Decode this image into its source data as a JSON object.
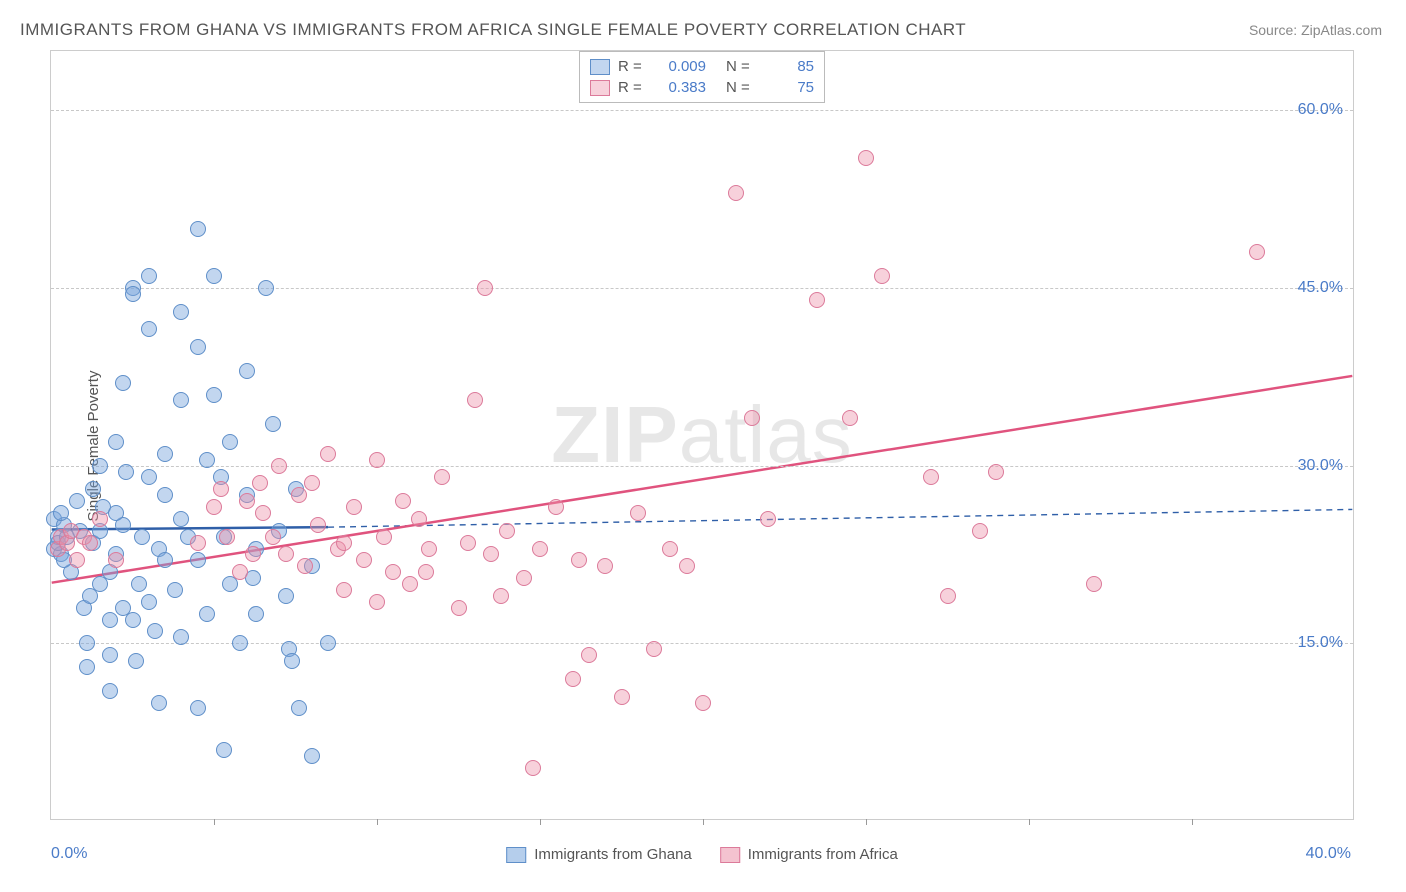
{
  "title": "IMMIGRANTS FROM GHANA VS IMMIGRANTS FROM AFRICA SINGLE FEMALE POVERTY CORRELATION CHART",
  "source": "Source: ZipAtlas.com",
  "watermark": "ZIPatlas",
  "ylabel": "Single Female Poverty",
  "chart": {
    "type": "scatter",
    "xlim": [
      0,
      40
    ],
    "ylim": [
      0,
      65
    ],
    "xtick_labels": [
      {
        "x": 0,
        "label": "0.0%"
      },
      {
        "x": 40,
        "label": "40.0%"
      }
    ],
    "xtick_minor": [
      5,
      10,
      15,
      20,
      25,
      30,
      35
    ],
    "ytick_labels": [
      {
        "y": 15,
        "label": "15.0%"
      },
      {
        "y": 30,
        "label": "30.0%"
      },
      {
        "y": 45,
        "label": "45.0%"
      },
      {
        "y": 60,
        "label": "60.0%"
      }
    ],
    "grid_color": "#c8c8c8",
    "background_color": "#ffffff",
    "marker_radius": 8,
    "series": [
      {
        "name": "Immigrants from Ghana",
        "fill": "rgba(120,165,220,0.45)",
        "stroke": "#5f8fc9",
        "r_value": "0.009",
        "n_value": "85",
        "trend": {
          "x1": 0,
          "y1": 24.5,
          "x2": 8.5,
          "y2": 24.7,
          "color": "#2f5fa8",
          "width": 2.5,
          "dash": "none"
        },
        "trend_ext": {
          "x1": 8.5,
          "y1": 24.7,
          "x2": 40,
          "y2": 26.2,
          "color": "#2f5fa8",
          "width": 1.4,
          "dash": "6,5"
        },
        "points": [
          [
            0.1,
            23.0
          ],
          [
            0.2,
            24.0
          ],
          [
            0.3,
            22.5
          ],
          [
            0.1,
            25.5
          ],
          [
            0.4,
            25.0
          ],
          [
            0.2,
            23.5
          ],
          [
            0.5,
            24.0
          ],
          [
            0.3,
            26.0
          ],
          [
            0.6,
            21.0
          ],
          [
            0.4,
            22.0
          ],
          [
            0.8,
            27.0
          ],
          [
            0.9,
            24.5
          ],
          [
            1.0,
            18.0
          ],
          [
            1.1,
            15.0
          ],
          [
            1.1,
            13.0
          ],
          [
            1.2,
            19.0
          ],
          [
            1.3,
            23.5
          ],
          [
            1.3,
            28.0
          ],
          [
            1.5,
            24.5
          ],
          [
            1.5,
            20.0
          ],
          [
            1.5,
            30.0
          ],
          [
            1.6,
            26.5
          ],
          [
            1.8,
            17.0
          ],
          [
            1.8,
            14.0
          ],
          [
            1.8,
            11.0
          ],
          [
            2.0,
            32.0
          ],
          [
            2.0,
            22.5
          ],
          [
            2.2,
            25.0
          ],
          [
            2.2,
            37.0
          ],
          [
            2.3,
            29.5
          ],
          [
            2.5,
            45.0
          ],
          [
            2.5,
            44.5
          ],
          [
            2.5,
            17.0
          ],
          [
            2.6,
            13.5
          ],
          [
            2.7,
            20.0
          ],
          [
            2.8,
            24.0
          ],
          [
            3.0,
            46.0
          ],
          [
            3.0,
            41.5
          ],
          [
            3.0,
            29.0
          ],
          [
            3.0,
            18.5
          ],
          [
            3.2,
            16.0
          ],
          [
            3.3,
            10.0
          ],
          [
            3.3,
            23.0
          ],
          [
            3.5,
            27.5
          ],
          [
            3.5,
            31.0
          ],
          [
            3.8,
            19.5
          ],
          [
            4.0,
            43.0
          ],
          [
            4.0,
            35.5
          ],
          [
            4.0,
            15.5
          ],
          [
            4.2,
            24.0
          ],
          [
            4.5,
            50.0
          ],
          [
            4.5,
            40.0
          ],
          [
            4.5,
            22.0
          ],
          [
            4.5,
            9.5
          ],
          [
            4.8,
            17.5
          ],
          [
            5.0,
            46.0
          ],
          [
            5.0,
            36.0
          ],
          [
            5.2,
            29.0
          ],
          [
            5.3,
            24.0
          ],
          [
            5.3,
            6.0
          ],
          [
            5.5,
            20.0
          ],
          [
            5.8,
            15.0
          ],
          [
            6.0,
            38.0
          ],
          [
            6.0,
            27.5
          ],
          [
            6.3,
            17.5
          ],
          [
            6.3,
            23.0
          ],
          [
            6.6,
            45.0
          ],
          [
            6.8,
            33.5
          ],
          [
            7.0,
            24.5
          ],
          [
            7.2,
            19.0
          ],
          [
            7.3,
            14.5
          ],
          [
            7.4,
            13.5
          ],
          [
            7.5,
            28.0
          ],
          [
            7.6,
            9.5
          ],
          [
            8.0,
            21.5
          ],
          [
            8.0,
            5.5
          ],
          [
            8.5,
            15.0
          ],
          [
            1.8,
            21.0
          ],
          [
            2.0,
            26.0
          ],
          [
            3.5,
            22.0
          ],
          [
            4.0,
            25.5
          ],
          [
            4.8,
            30.5
          ],
          [
            5.5,
            32.0
          ],
          [
            6.2,
            20.5
          ],
          [
            2.2,
            18.0
          ]
        ]
      },
      {
        "name": "Immigrants from Africa",
        "fill": "rgba(235,145,170,0.42)",
        "stroke": "#dc7a9a",
        "r_value": "0.383",
        "n_value": "75",
        "trend": {
          "x1": 0,
          "y1": 20.0,
          "x2": 40,
          "y2": 37.5,
          "color": "#e0537e",
          "width": 2.5,
          "dash": "none"
        },
        "points": [
          [
            0.2,
            23.0
          ],
          [
            0.3,
            24.0
          ],
          [
            0.5,
            23.5
          ],
          [
            0.6,
            24.5
          ],
          [
            0.8,
            22.0
          ],
          [
            1.0,
            24.0
          ],
          [
            1.2,
            23.5
          ],
          [
            1.5,
            25.5
          ],
          [
            2.0,
            22.0
          ],
          [
            4.5,
            23.5
          ],
          [
            5.0,
            26.5
          ],
          [
            5.2,
            28.0
          ],
          [
            5.4,
            24.0
          ],
          [
            5.8,
            21.0
          ],
          [
            6.0,
            27.0
          ],
          [
            6.2,
            22.5
          ],
          [
            6.4,
            28.5
          ],
          [
            6.5,
            26.0
          ],
          [
            6.8,
            24.0
          ],
          [
            7.0,
            30.0
          ],
          [
            7.2,
            22.5
          ],
          [
            7.6,
            27.5
          ],
          [
            7.8,
            21.5
          ],
          [
            8.0,
            28.5
          ],
          [
            8.2,
            25.0
          ],
          [
            8.5,
            31.0
          ],
          [
            8.8,
            23.0
          ],
          [
            9.0,
            19.5
          ],
          [
            9.3,
            26.5
          ],
          [
            9.6,
            22.0
          ],
          [
            10.0,
            30.5
          ],
          [
            10.2,
            24.0
          ],
          [
            10.5,
            21.0
          ],
          [
            10.8,
            27.0
          ],
          [
            11.0,
            20.0
          ],
          [
            11.3,
            25.5
          ],
          [
            11.6,
            23.0
          ],
          [
            12.0,
            29.0
          ],
          [
            12.5,
            18.0
          ],
          [
            13.0,
            35.5
          ],
          [
            13.3,
            45.0
          ],
          [
            13.5,
            22.5
          ],
          [
            13.8,
            19.0
          ],
          [
            14.0,
            24.5
          ],
          [
            14.5,
            20.5
          ],
          [
            14.8,
            4.5
          ],
          [
            15.0,
            23.0
          ],
          [
            15.5,
            26.5
          ],
          [
            16.0,
            12.0
          ],
          [
            16.2,
            22.0
          ],
          [
            16.5,
            14.0
          ],
          [
            17.0,
            21.5
          ],
          [
            17.5,
            10.5
          ],
          [
            18.0,
            26.0
          ],
          [
            18.5,
            14.5
          ],
          [
            19.0,
            23.0
          ],
          [
            19.5,
            21.5
          ],
          [
            20.0,
            10.0
          ],
          [
            21.0,
            53.0
          ],
          [
            21.5,
            34.0
          ],
          [
            22.0,
            25.5
          ],
          [
            23.5,
            44.0
          ],
          [
            24.5,
            34.0
          ],
          [
            25.0,
            56.0
          ],
          [
            25.5,
            46.0
          ],
          [
            27.0,
            29.0
          ],
          [
            27.5,
            19.0
          ],
          [
            28.5,
            24.5
          ],
          [
            29.0,
            29.5
          ],
          [
            32.0,
            20.0
          ],
          [
            37.0,
            48.0
          ],
          [
            9.0,
            23.5
          ],
          [
            10.0,
            18.5
          ],
          [
            11.5,
            21.0
          ],
          [
            12.8,
            23.5
          ]
        ]
      }
    ],
    "legend_bottom": {
      "items": [
        {
          "label": "Immigrants from Ghana",
          "fill": "rgba(120,165,220,0.55)",
          "stroke": "#5f8fc9"
        },
        {
          "label": "Immigrants from Africa",
          "fill": "rgba(235,145,170,0.55)",
          "stroke": "#dc7a9a"
        }
      ]
    }
  }
}
